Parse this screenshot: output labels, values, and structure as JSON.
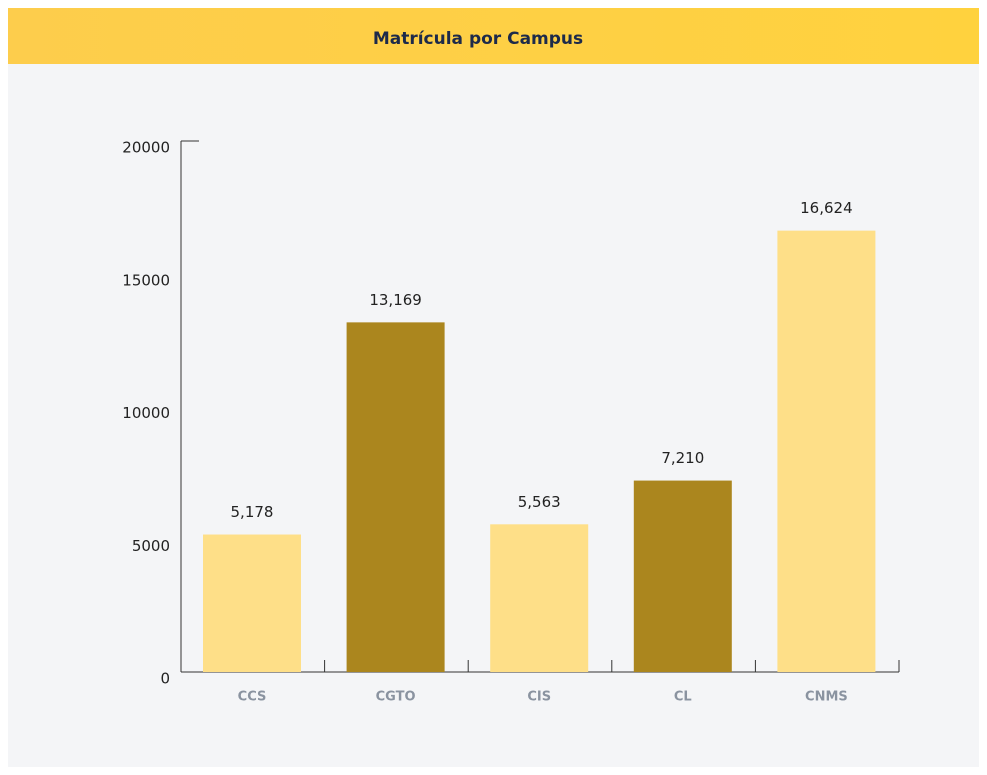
{
  "chart_data": {
    "type": "bar",
    "title": "Matrícula por Campus",
    "categories": [
      "CCS",
      "CGTO",
      "CIS",
      "CL",
      "CNMS"
    ],
    "values": [
      5178,
      13169,
      5563,
      7210,
      16624
    ],
    "value_labels": [
      "5,178",
      "13,169",
      "5,563",
      "7,210",
      "16,624"
    ],
    "colors": [
      "#fedf88",
      "#ab861e",
      "#fedf88",
      "#ab861e",
      "#fedf88"
    ],
    "ylim": [
      0,
      20000
    ],
    "yticks": [
      0,
      5000,
      10000,
      15000,
      20000
    ],
    "grid": false
  }
}
